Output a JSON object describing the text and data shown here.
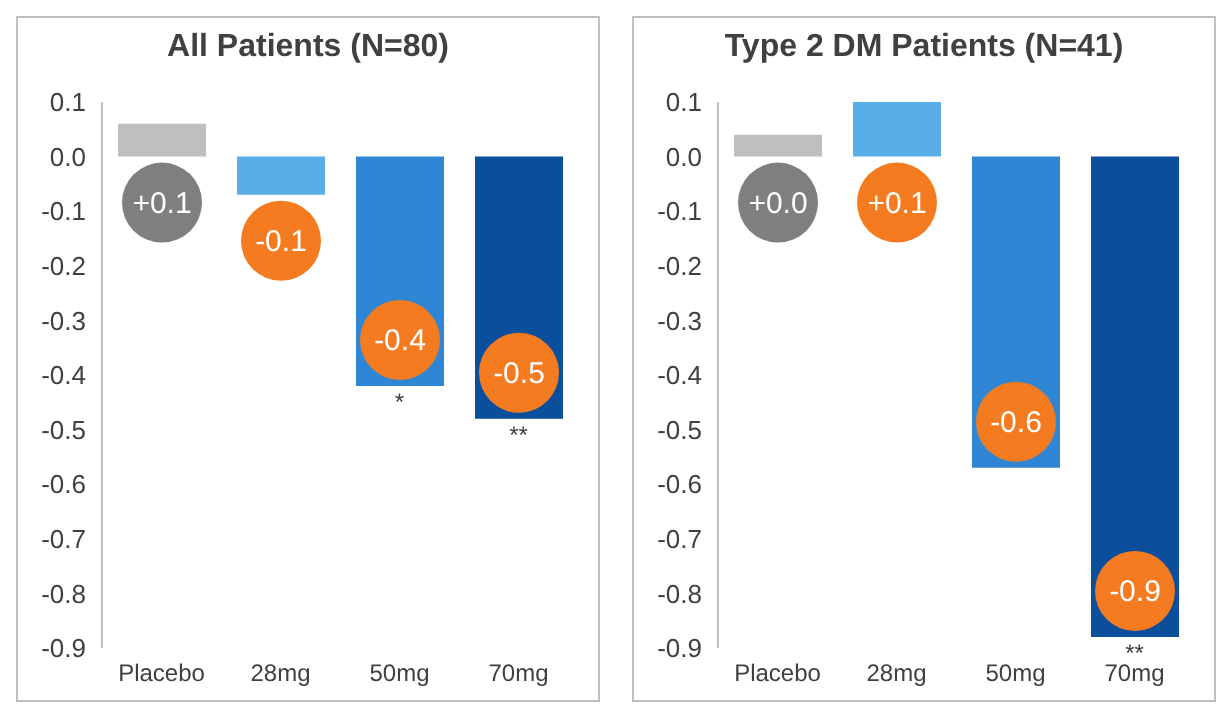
{
  "chart_data": [
    {
      "type": "bar",
      "title": "All Patients (N=80)",
      "categories": [
        "Placebo",
        "28mg",
        "50mg",
        "70mg"
      ],
      "values": [
        0.06,
        -0.07,
        -0.42,
        -0.48
      ],
      "colors": [
        "#bfbfbf",
        "#5aaee8",
        "#2e86d4",
        "#0b4f9c"
      ],
      "value_labels": [
        "+0.1",
        "-0.1",
        "-0.4",
        "-0.5"
      ],
      "ylim": [
        -0.9,
        0.1
      ],
      "yticks": [
        -0.9,
        -0.8,
        -0.7,
        -0.6,
        -0.5,
        -0.4,
        -0.3,
        -0.2,
        -0.1,
        {
          "value": 0,
          "label": "0.0"
        },
        0.1
      ],
      "annotations": [
        {
          "text": "*",
          "x": "50mg",
          "y": -0.42
        },
        {
          "text": "**",
          "x": "70mg",
          "y": -0.48
        }
      ]
    },
    {
      "type": "bar",
      "title": "Type 2 DM Patients (N=41)",
      "categories": [
        "Placebo",
        "28mg",
        "50mg",
        "70mg"
      ],
      "values": [
        0.04,
        0.1,
        -0.57,
        -0.88
      ],
      "colors": [
        "#bfbfbf",
        "#5aaee8",
        "#2e86d4",
        "#0b4f9c"
      ],
      "value_labels": [
        "+0.0",
        "+0.1",
        "-0.6",
        "-0.9"
      ],
      "ylim": [
        -0.9,
        0.1
      ],
      "yticks": [
        -0.9,
        -0.8,
        -0.7,
        -0.6,
        -0.5,
        -0.4,
        -0.3,
        -0.2,
        -0.1,
        {
          "value": 0,
          "label": "0.0"
        },
        0.1
      ],
      "annotations": [
        {
          "text": "**",
          "x": "70mg",
          "y": -0.88
        }
      ]
    }
  ]
}
